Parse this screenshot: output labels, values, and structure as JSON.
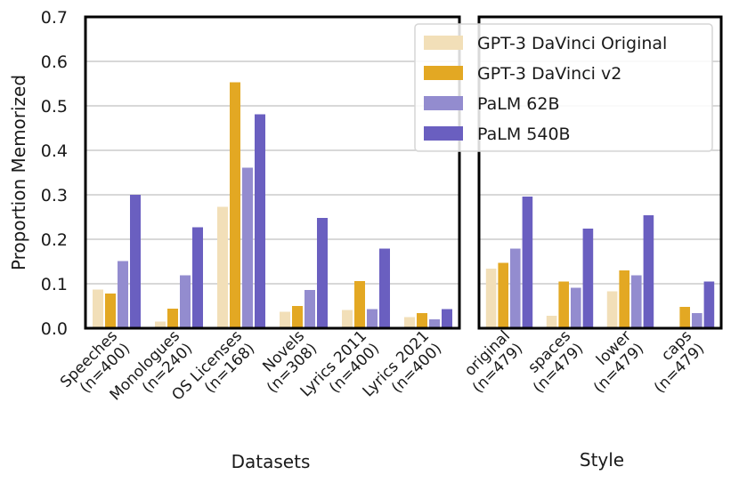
{
  "chart_data": [
    {
      "type": "bar",
      "title": "",
      "xlabel": "Datasets",
      "ylabel": "Proportion Memorized",
      "ylim": [
        0,
        0.7
      ],
      "yticks": [
        "0.0",
        "0.1",
        "0.2",
        "0.3",
        "0.4",
        "0.5",
        "0.6",
        "0.7"
      ],
      "grid": true,
      "categories": [
        [
          "Speeches",
          "(n=400)"
        ],
        [
          "Monologues",
          "(n=240)"
        ],
        [
          "OS Licenses",
          "(n=168)"
        ],
        [
          "Novels",
          "(n=308)"
        ],
        [
          "Lyrics 2011",
          "(n=400)"
        ],
        [
          "Lyrics 2021",
          "(n=400)"
        ]
      ],
      "series": [
        {
          "name": "GPT-3 DaVinci Original",
          "color": "#f2dfb8",
          "values": [
            0.087,
            0.015,
            0.273,
            0.037,
            0.041,
            0.025
          ]
        },
        {
          "name": "GPT-3 DaVinci v2",
          "color": "#e3a823",
          "values": [
            0.078,
            0.044,
            0.553,
            0.05,
            0.106,
            0.034
          ]
        },
        {
          "name": "PaLM 62B",
          "color": "#938ccf",
          "values": [
            0.151,
            0.119,
            0.361,
            0.086,
            0.043,
            0.02
          ]
        },
        {
          "name": "PaLM 540B",
          "color": "#6a5fc0",
          "values": [
            0.3,
            0.227,
            0.481,
            0.248,
            0.179,
            0.043
          ]
        }
      ]
    },
    {
      "type": "bar",
      "title": "",
      "xlabel": "Style",
      "ylabel": "",
      "ylim": [
        0,
        0.7
      ],
      "grid": true,
      "categories": [
        [
          "original",
          "(n=479)"
        ],
        [
          "spaces",
          "(n=479)"
        ],
        [
          "lower",
          "(n=479)"
        ],
        [
          "caps",
          "(n=479)"
        ]
      ],
      "series": [
        {
          "name": "GPT-3 DaVinci Original",
          "color": "#f2dfb8",
          "values": [
            0.134,
            0.028,
            0.083,
            0.003
          ]
        },
        {
          "name": "GPT-3 DaVinci v2",
          "color": "#e3a823",
          "values": [
            0.147,
            0.105,
            0.13,
            0.048
          ]
        },
        {
          "name": "PaLM 62B",
          "color": "#938ccf",
          "values": [
            0.179,
            0.091,
            0.119,
            0.034
          ]
        },
        {
          "name": "PaLM 540B",
          "color": "#6a5fc0",
          "values": [
            0.296,
            0.224,
            0.254,
            0.105
          ]
        }
      ]
    }
  ],
  "legend": {
    "placement": "top-right",
    "entries": [
      "GPT-3 DaVinci Original",
      "GPT-3 DaVinci v2",
      "PaLM 62B",
      "PaLM 540B"
    ]
  }
}
